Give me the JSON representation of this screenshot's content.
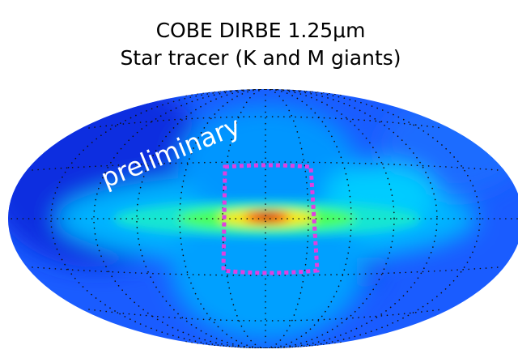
{
  "title": "COBE DIRBE  1.25μm",
  "subtitle": "Star tracer (K and M giants)",
  "annotation": "preliminary"
}
